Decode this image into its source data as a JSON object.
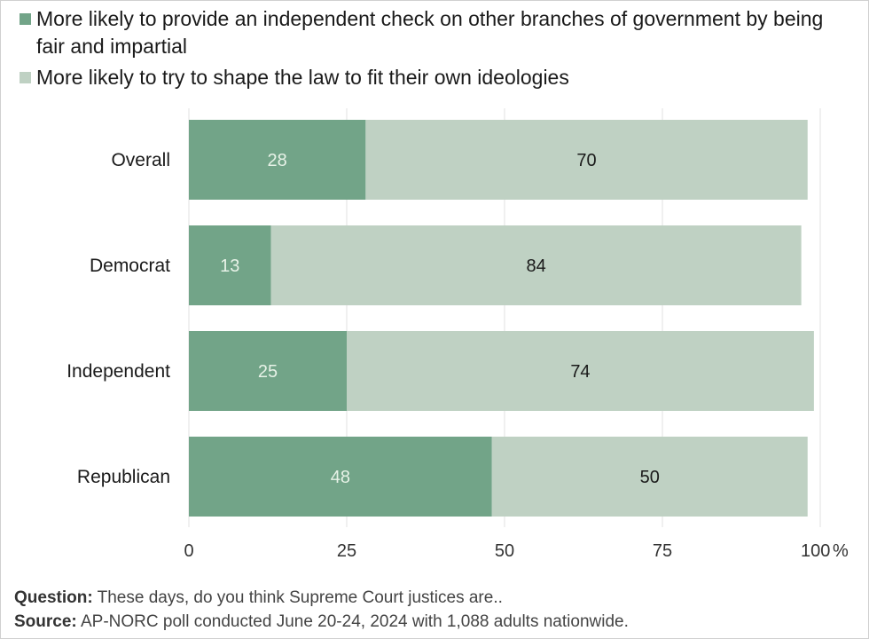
{
  "chart_data": {
    "type": "bar",
    "orientation": "horizontal",
    "stacked": true,
    "categories": [
      "Overall",
      "Democrat",
      "Independent",
      "Republican"
    ],
    "series": [
      {
        "name": "More likely to provide an independent check on other branches of government by being fair and impartial",
        "values": [
          28,
          13,
          25,
          48
        ],
        "color": "#72a488"
      },
      {
        "name": "More likely to try to shape the law to fit their own ideologies",
        "values": [
          70,
          84,
          74,
          50
        ],
        "color": "#bfd1c3"
      }
    ],
    "xticks": [
      "0",
      "25",
      "50",
      "75",
      "100"
    ],
    "x_unit": "%",
    "xlim": [
      0,
      100
    ],
    "grid": true,
    "legend_position": "top-left",
    "label_colors": [
      "#e7f2e7",
      "#1a1a1a"
    ]
  },
  "notes": {
    "question_label": "Question:",
    "question_text": " These days, do you think Supreme Court justices are..",
    "source_label": "Source:",
    "source_text": " AP-NORC poll conducted June 20-24, 2024 with 1,088 adults nationwide."
  }
}
